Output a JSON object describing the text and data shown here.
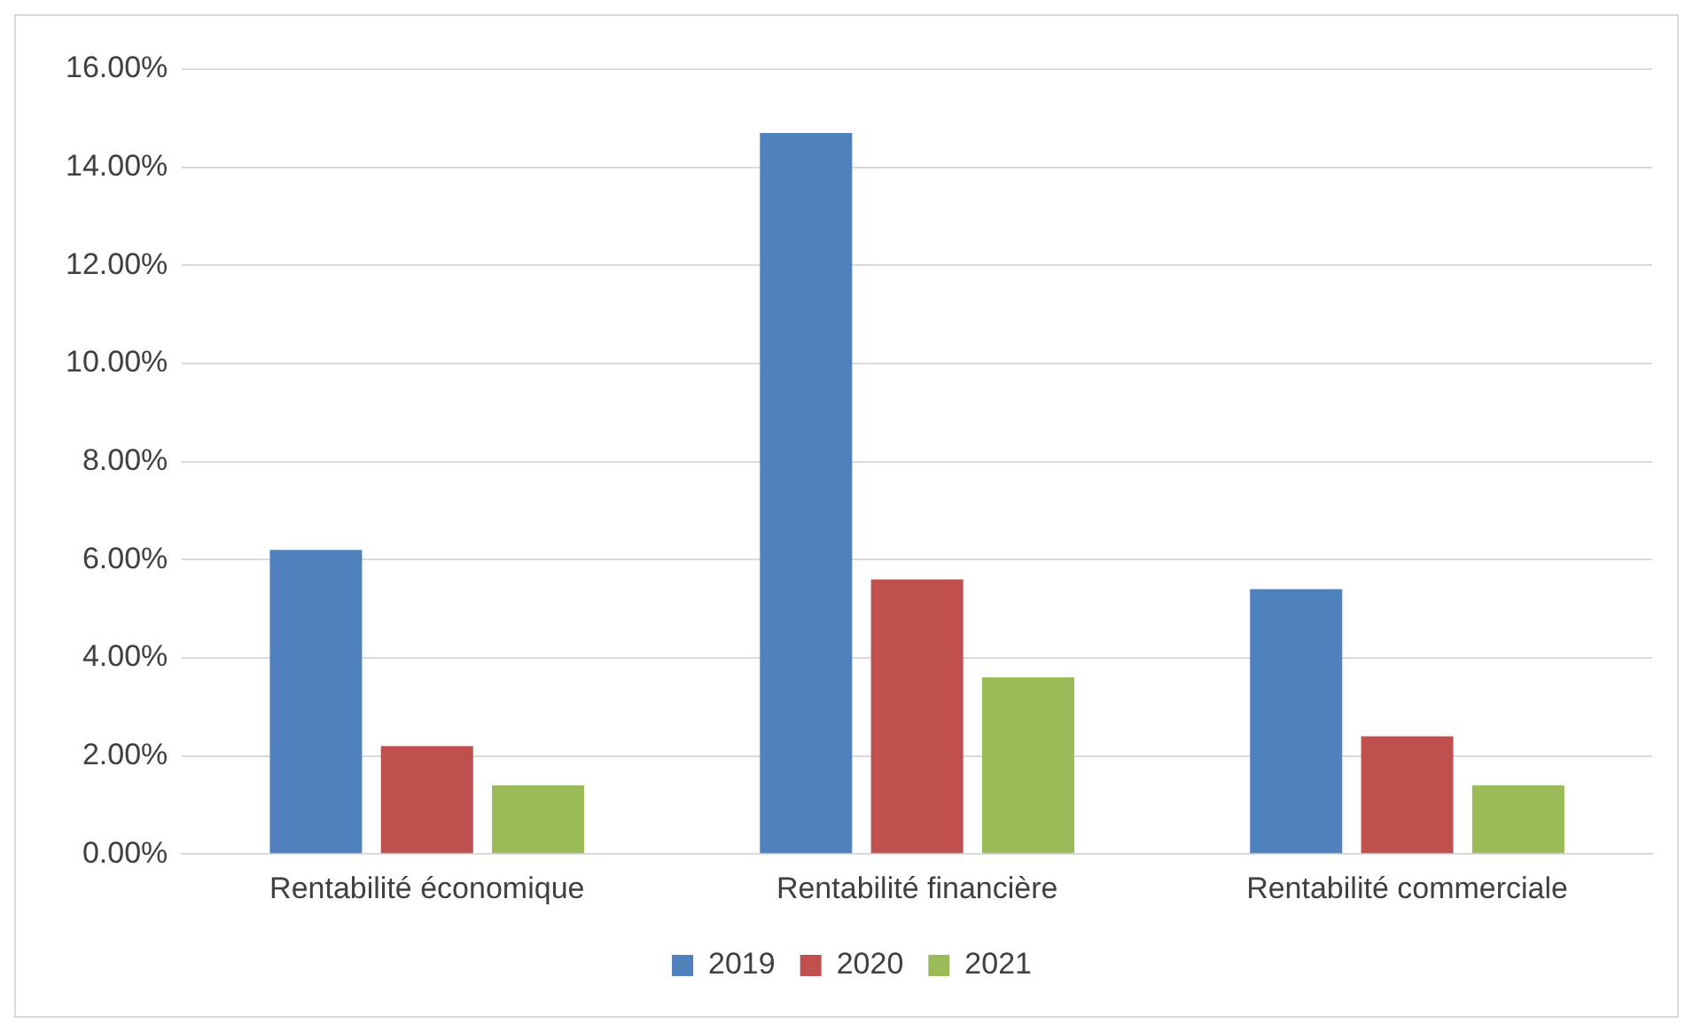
{
  "chart_data": {
    "type": "bar",
    "categories": [
      "Rentabilité économique",
      "Rentabilité financière",
      "Rentabilité commerciale"
    ],
    "series": [
      {
        "name": "2019",
        "color": "#4f81bd",
        "values": [
          6.2,
          14.7,
          5.4
        ]
      },
      {
        "name": "2020",
        "color": "#c0504d",
        "values": [
          2.2,
          5.6,
          2.4
        ]
      },
      {
        "name": "2021",
        "color": "#9bbb59",
        "values": [
          1.4,
          3.6,
          1.4
        ]
      }
    ],
    "ylim": [
      0,
      16
    ],
    "yticks": [
      {
        "value": 0,
        "label": "0.00%"
      },
      {
        "value": 2,
        "label": "2.00%"
      },
      {
        "value": 4,
        "label": "4.00%"
      },
      {
        "value": 6,
        "label": "6.00%"
      },
      {
        "value": 8,
        "label": "8.00%"
      },
      {
        "value": 10,
        "label": "10.00%"
      },
      {
        "value": 12,
        "label": "12.00%"
      },
      {
        "value": 14,
        "label": "14.00%"
      },
      {
        "value": 16,
        "label": "16.00%"
      }
    ],
    "grid": "y",
    "legend": "bottom"
  }
}
